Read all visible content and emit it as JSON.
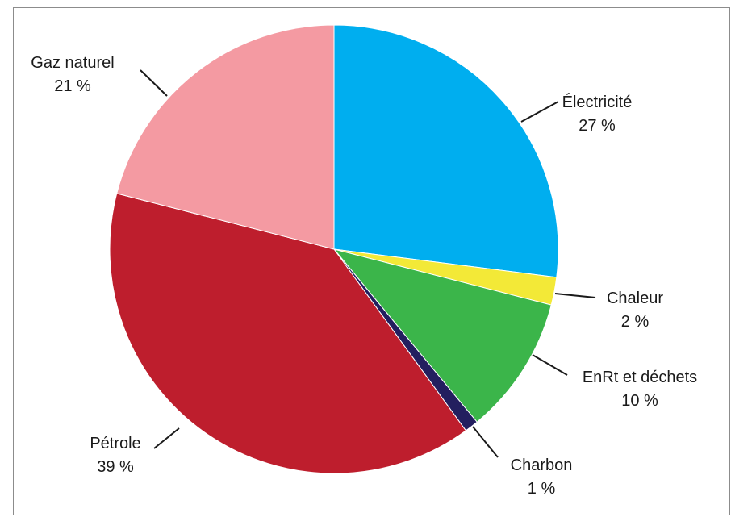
{
  "chart_data": {
    "type": "pie",
    "title": "",
    "start_angle_deg": 0,
    "direction": "clockwise",
    "slices": [
      {
        "label": "Électricité",
        "value_label": "27 %",
        "value": 27,
        "color": "#00AEEF"
      },
      {
        "label": "Chaleur",
        "value_label": "2 %",
        "value": 2,
        "color": "#F3E937"
      },
      {
        "label": "EnRt et déchets",
        "value_label": "10 %",
        "value": 10,
        "color": "#3BB54A"
      },
      {
        "label": "Charbon",
        "value_label": "1 %",
        "value": 1,
        "color": "#231F5F"
      },
      {
        "label": "Pétrole",
        "value_label": "39 %",
        "value": 39,
        "color": "#BE1E2D"
      },
      {
        "label": "Gaz naturel",
        "value_label": "21 %",
        "value": 21,
        "color": "#F49AA2"
      }
    ]
  }
}
